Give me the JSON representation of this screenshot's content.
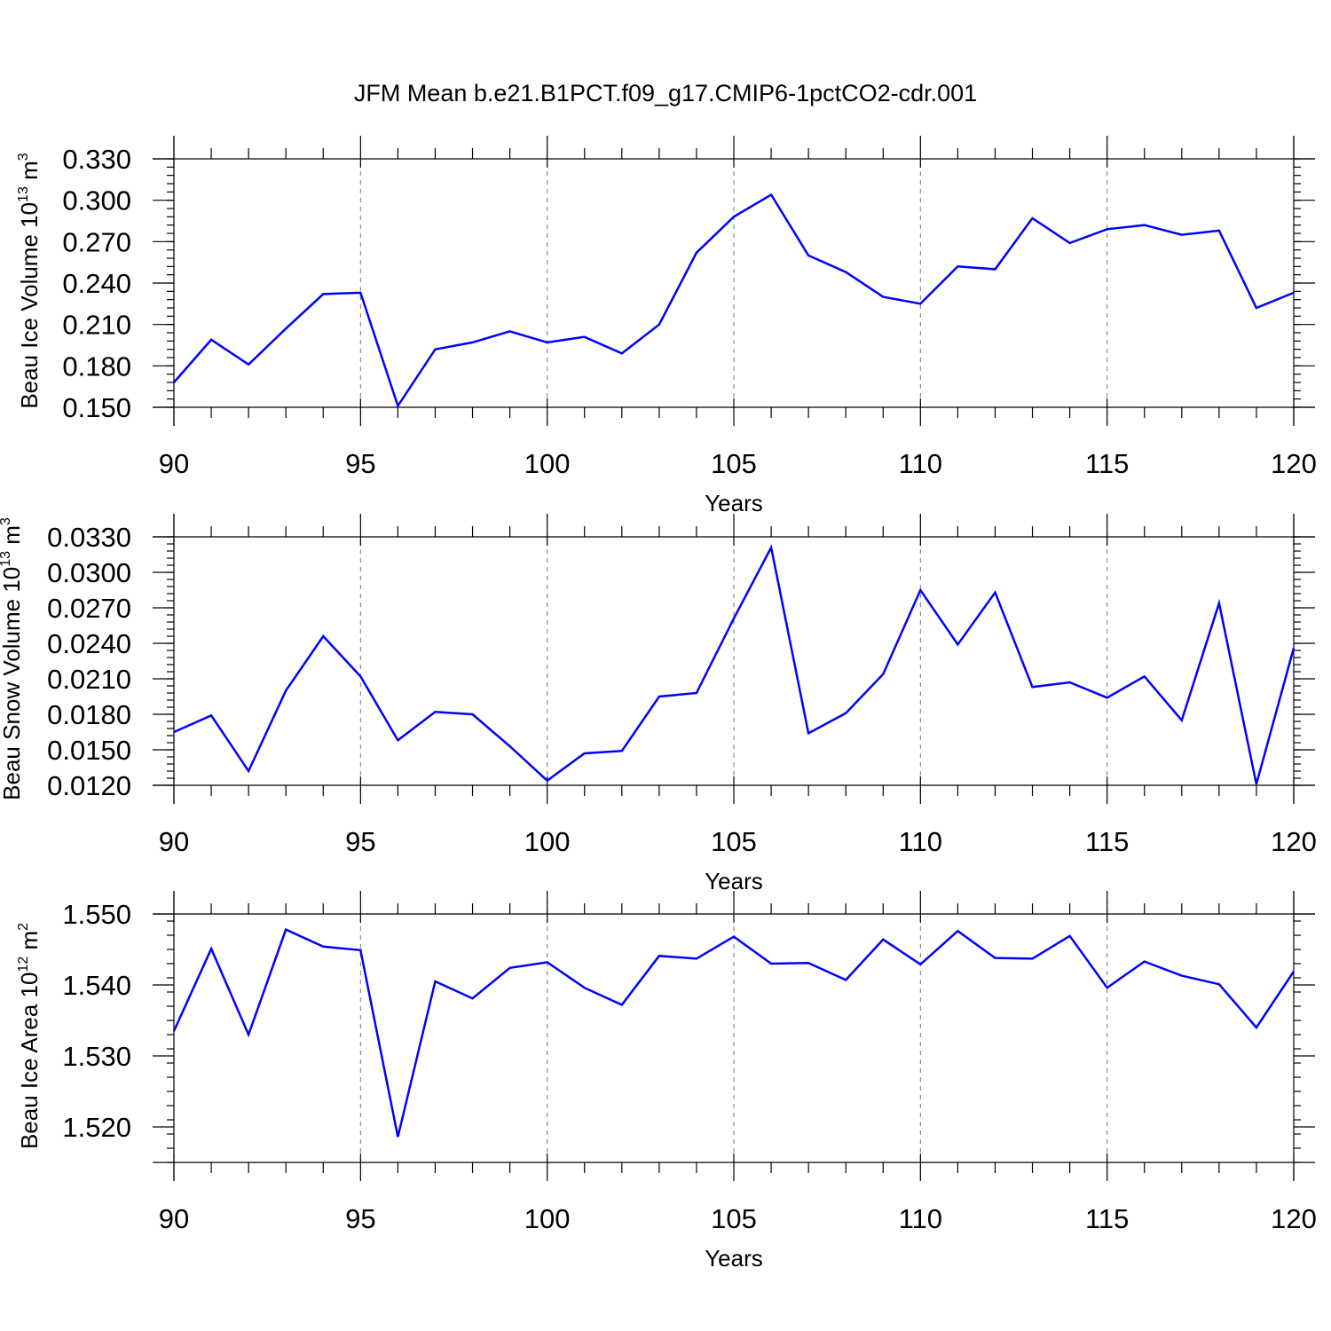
{
  "figure_title": "JFM Mean b.e21.B1PCT.f09_g17.CMIP6-1pctCO2-cdr.001",
  "chart_data": [
    {
      "type": "line",
      "name": "ice-volume",
      "ylabel_main": "Beau Ice Volume 10",
      "ylabel_exp": "13",
      "ylabel_unit": " m",
      "ylabel_unit_exp": "3",
      "xlabel": "Years",
      "xlim": [
        90,
        120
      ],
      "ylim": [
        0.15,
        0.33
      ],
      "ymin_shown": 0.15,
      "ymax_shown": 0.33,
      "x_ticks": [
        "90",
        "95",
        "100",
        "105",
        "110",
        "115",
        "120"
      ],
      "y_ticks": [
        "0.150",
        "0.180",
        "0.210",
        "0.240",
        "0.270",
        "0.300",
        "0.330"
      ],
      "x": [
        90,
        91,
        92,
        93,
        94,
        95,
        96,
        97,
        98,
        99,
        100,
        101,
        102,
        103,
        104,
        105,
        106,
        107,
        108,
        109,
        110,
        111,
        112,
        113,
        114,
        115,
        116,
        117,
        118,
        119,
        120
      ],
      "values": [
        0.168,
        0.199,
        0.181,
        0.207,
        0.232,
        0.233,
        0.151,
        0.192,
        0.197,
        0.205,
        0.197,
        0.201,
        0.189,
        0.21,
        0.262,
        0.288,
        0.304,
        0.26,
        0.248,
        0.23,
        0.225,
        0.252,
        0.25,
        0.287,
        0.269,
        0.279,
        0.282,
        0.275,
        0.278,
        0.222,
        0.233
      ]
    },
    {
      "type": "line",
      "name": "snow-volume",
      "ylabel_main": "Beau Snow Volume 10",
      "ylabel_exp": "13",
      "ylabel_unit": " m",
      "ylabel_unit_exp": "3",
      "xlabel": "Years",
      "xlim": [
        90,
        120
      ],
      "ylim": [
        0.012,
        0.033
      ],
      "x_ticks": [
        "90",
        "95",
        "100",
        "105",
        "110",
        "115",
        "120"
      ],
      "y_ticks": [
        "0.0120",
        "0.0150",
        "0.0180",
        "0.0210",
        "0.0240",
        "0.0270",
        "0.0300",
        "0.0330"
      ],
      "x": [
        90,
        91,
        92,
        93,
        94,
        95,
        96,
        97,
        98,
        99,
        100,
        101,
        102,
        103,
        104,
        105,
        106,
        107,
        108,
        109,
        110,
        111,
        112,
        113,
        114,
        115,
        116,
        117,
        118,
        119,
        120
      ],
      "values": [
        0.0165,
        0.0179,
        0.0132,
        0.02,
        0.0246,
        0.0212,
        0.0158,
        0.0182,
        0.018,
        0.0153,
        0.0124,
        0.0147,
        0.0149,
        0.0195,
        0.0198,
        0.0261,
        0.0321,
        0.0164,
        0.0181,
        0.0214,
        0.0285,
        0.0239,
        0.0283,
        0.0203,
        0.0207,
        0.0194,
        0.0212,
        0.0175,
        0.0274,
        0.0121,
        0.0236
      ]
    },
    {
      "type": "line",
      "name": "ice-area",
      "ylabel_main": "Beau Ice Area 10",
      "ylabel_exp": "12",
      "ylabel_unit": " m",
      "ylabel_unit_exp": "2",
      "xlabel": "Years",
      "xlim": [
        90,
        120
      ],
      "ylim": [
        1.515,
        1.55
      ],
      "x_ticks": [
        "90",
        "95",
        "100",
        "105",
        "110",
        "115",
        "120"
      ],
      "y_ticks": [
        "1.520",
        "1.530",
        "1.540",
        "1.550"
      ],
      "x": [
        90,
        91,
        92,
        93,
        94,
        95,
        96,
        97,
        98,
        99,
        100,
        101,
        102,
        103,
        104,
        105,
        106,
        107,
        108,
        109,
        110,
        111,
        112,
        113,
        114,
        115,
        116,
        117,
        118,
        119,
        120
      ],
      "values": [
        1.5335,
        1.5451,
        1.533,
        1.5478,
        1.5454,
        1.5449,
        1.5186,
        1.5405,
        1.5381,
        1.5424,
        1.5432,
        1.5396,
        1.5372,
        1.5441,
        1.5437,
        1.5468,
        1.543,
        1.5431,
        1.5407,
        1.5464,
        1.5429,
        1.5476,
        1.5438,
        1.5437,
        1.5469,
        1.5396,
        1.5433,
        1.5413,
        1.5401,
        1.534,
        1.5419
      ]
    }
  ]
}
